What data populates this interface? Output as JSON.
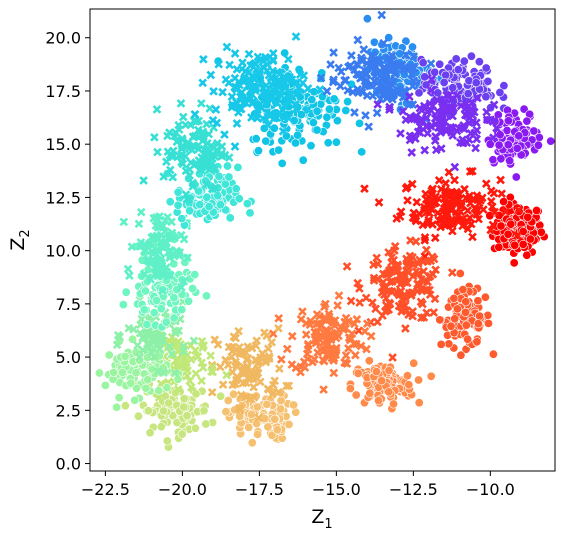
{
  "chart_data": {
    "type": "scatter",
    "title": "",
    "xlabel": "Z",
    "xlabel_sub": "1",
    "ylabel": "Z",
    "ylabel_sub": "2",
    "xlim": [
      -23.0,
      -7.9
    ],
    "ylim": [
      -0.35,
      21.35
    ],
    "xticks": [
      -22.5,
      -20.0,
      -17.5,
      -15.0,
      -12.5,
      -10.0
    ],
    "xtick_labels": [
      "−22.5",
      "−20.0",
      "−17.5",
      "−15.0",
      "−12.5",
      "−10.0"
    ],
    "yticks": [
      0.0,
      2.5,
      5.0,
      7.5,
      10.0,
      12.5,
      15.0,
      17.5,
      20.0
    ],
    "ytick_labels": [
      "0.0",
      "2.5",
      "5.0",
      "7.5",
      "10.0",
      "12.5",
      "15.0",
      "17.5",
      "20.0"
    ],
    "grid": false,
    "legend": "none",
    "marker_shapes": [
      "circle",
      "x"
    ],
    "clusters": [
      {
        "color": "#ff0000",
        "marker": "circle",
        "cx": -9.1,
        "cy": 11.0,
        "sx": 0.4,
        "sy": 0.6,
        "n": 130
      },
      {
        "color": "#ff1a0d",
        "marker": "x",
        "cx": -11.3,
        "cy": 12.1,
        "sx": 0.8,
        "sy": 0.7,
        "n": 150
      },
      {
        "color": "#ff5a2d",
        "marker": "circle",
        "cx": -10.8,
        "cy": 6.8,
        "sx": 0.4,
        "sy": 0.65,
        "n": 110
      },
      {
        "color": "#ff5029",
        "marker": "x",
        "cx": -12.8,
        "cy": 8.4,
        "sx": 0.65,
        "sy": 0.85,
        "n": 140
      },
      {
        "color": "#ff8a4a",
        "marker": "circle",
        "cx": -13.5,
        "cy": 3.7,
        "sx": 0.5,
        "sy": 0.5,
        "n": 110
      },
      {
        "color": "#ff7a40",
        "marker": "x",
        "cx": -15.3,
        "cy": 5.9,
        "sx": 0.6,
        "sy": 0.85,
        "n": 120
      },
      {
        "color": "#f5c070",
        "marker": "circle",
        "cx": -17.5,
        "cy": 2.2,
        "sx": 0.5,
        "sy": 0.55,
        "n": 100
      },
      {
        "color": "#f0b860",
        "marker": "x",
        "cx": -17.8,
        "cy": 4.5,
        "sx": 0.55,
        "sy": 0.9,
        "n": 90
      },
      {
        "color": "#c8e680",
        "marker": "circle",
        "cx": -20.2,
        "cy": 2.5,
        "sx": 0.55,
        "sy": 0.55,
        "n": 100
      },
      {
        "color": "#c0e878",
        "marker": "x",
        "cx": -20.0,
        "cy": 4.8,
        "sx": 0.55,
        "sy": 0.6,
        "n": 70
      },
      {
        "color": "#9af5a0",
        "marker": "circle",
        "cx": -21.5,
        "cy": 4.4,
        "sx": 0.5,
        "sy": 0.6,
        "n": 100
      },
      {
        "color": "#8cf0a8",
        "marker": "x",
        "cx": -20.8,
        "cy": 6.0,
        "sx": 0.5,
        "sy": 0.7,
        "n": 70
      },
      {
        "color": "#6ef5c0",
        "marker": "circle",
        "cx": -20.7,
        "cy": 8.2,
        "sx": 0.5,
        "sy": 0.8,
        "n": 110
      },
      {
        "color": "#60f0c8",
        "marker": "x",
        "cx": -20.7,
        "cy": 10.2,
        "sx": 0.4,
        "sy": 0.9,
        "n": 100
      },
      {
        "color": "#40e6d8",
        "marker": "circle",
        "cx": -19.2,
        "cy": 12.5,
        "sx": 0.5,
        "sy": 0.7,
        "n": 110
      },
      {
        "color": "#38e0d4",
        "marker": "x",
        "cx": -19.6,
        "cy": 14.8,
        "sx": 0.5,
        "sy": 1.0,
        "n": 110
      },
      {
        "color": "#10c4e6",
        "marker": "circle",
        "cx": -16.3,
        "cy": 16.8,
        "sx": 0.75,
        "sy": 1.0,
        "n": 170
      },
      {
        "color": "#18c8e8",
        "marker": "x",
        "cx": -17.5,
        "cy": 17.6,
        "sx": 0.75,
        "sy": 0.9,
        "n": 160
      },
      {
        "color": "#2a8ef0",
        "marker": "circle",
        "cx": -13.0,
        "cy": 18.4,
        "sx": 0.5,
        "sy": 0.7,
        "n": 120
      },
      {
        "color": "#3a7cf0",
        "marker": "x",
        "cx": -13.8,
        "cy": 18.2,
        "sx": 0.75,
        "sy": 0.8,
        "n": 130
      },
      {
        "color": "#6a40f0",
        "marker": "circle",
        "cx": -11.0,
        "cy": 17.7,
        "sx": 0.6,
        "sy": 0.6,
        "n": 120
      },
      {
        "color": "#8a1af2",
        "marker": "circle",
        "cx": -9.2,
        "cy": 15.3,
        "sx": 0.45,
        "sy": 0.6,
        "n": 110
      },
      {
        "color": "#7a2ef0",
        "marker": "x",
        "cx": -11.6,
        "cy": 16.2,
        "sx": 0.7,
        "sy": 0.75,
        "n": 120
      }
    ]
  }
}
